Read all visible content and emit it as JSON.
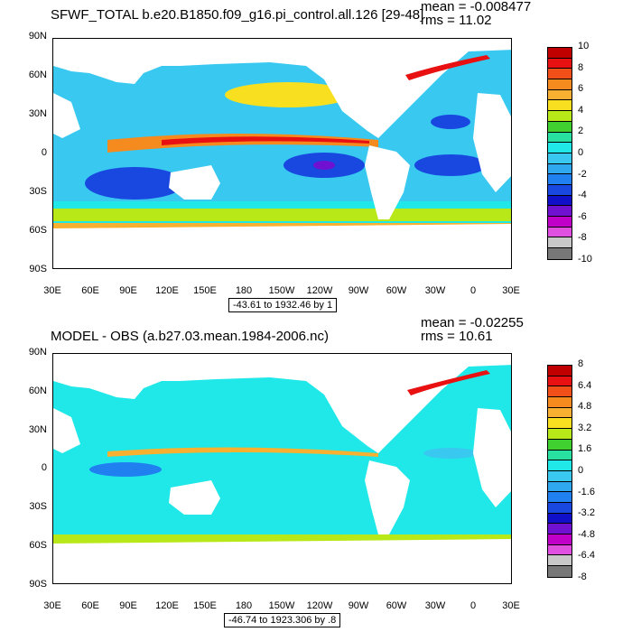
{
  "chart_data": [
    {
      "type": "heatmap",
      "title": "SFWF_TOTAL b.e20.B1850.f09_g16.pi_control.all.126 [29-48]",
      "mean_label": "mean = -0.008477",
      "rms_label": "rms = 11.02",
      "range_label": "-43.61 to 1932.46 by 1",
      "y_ticks": [
        "90N",
        "60N",
        "30N",
        "0",
        "30S",
        "60S",
        "90S"
      ],
      "x_ticks": [
        "30E",
        "60E",
        "90E",
        "120E",
        "150E",
        "180",
        "150W",
        "120W",
        "90W",
        "60W",
        "30W",
        "0",
        "30E"
      ],
      "ylim": [
        -90,
        90
      ],
      "xlim": [
        30,
        390
      ],
      "colorbar": {
        "labels": [
          "10",
          "8",
          "6",
          "4",
          "2",
          "0",
          "-2",
          "-4",
          "-6",
          "-8",
          "-10"
        ],
        "colors": [
          "#c00000",
          "#e81010",
          "#f25018",
          "#f58a1e",
          "#f8b030",
          "#f8e020",
          "#b8e818",
          "#40d030",
          "#28e0a0",
          "#20e8e8",
          "#38c8f0",
          "#30a8f0",
          "#2080f0",
          "#1848e0",
          "#1010c8",
          "#7010d0",
          "#c000c8",
          "#e050e0",
          "#c8c8c8",
          "#787878"
        ]
      }
    },
    {
      "type": "heatmap",
      "title": "MODEL - OBS (a.b27.03.mean.1984-2006.nc)",
      "mean_label": "mean = -0.02255",
      "rms_label": "rms = 10.61",
      "range_label": "-46.74 to 1923.306 by .8",
      "y_ticks": [
        "90N",
        "60N",
        "30N",
        "0",
        "30S",
        "60S",
        "90S"
      ],
      "x_ticks": [
        "30E",
        "60E",
        "90E",
        "120E",
        "150E",
        "180",
        "150W",
        "120W",
        "90W",
        "60W",
        "30W",
        "0",
        "30E"
      ],
      "ylim": [
        -90,
        90
      ],
      "xlim": [
        30,
        390
      ],
      "colorbar": {
        "labels": [
          "8",
          "6.4",
          "4.8",
          "3.2",
          "1.6",
          "0",
          "-1.6",
          "-3.2",
          "-4.8",
          "-6.4",
          "-8"
        ],
        "colors": [
          "#c00000",
          "#e81010",
          "#f25018",
          "#f58a1e",
          "#f8b030",
          "#f8e020",
          "#b8e818",
          "#40d030",
          "#28e0a0",
          "#20e8e8",
          "#38c8f0",
          "#30a8f0",
          "#2080f0",
          "#1848e0",
          "#1010c8",
          "#7010d0",
          "#c000c8",
          "#e050e0",
          "#c8c8c8",
          "#787878"
        ]
      }
    }
  ]
}
